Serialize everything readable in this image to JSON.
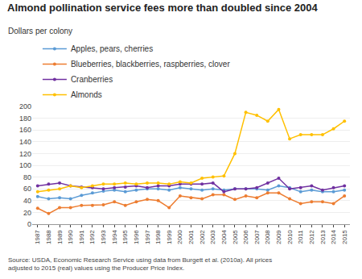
{
  "chart_data": {
    "type": "line",
    "title": "Almond pollination service fees more than doubled since 2004",
    "ylabel": "Dollars per colony",
    "annotations": [
      "Source: USDA, Economic Research Service using data from Burgett et al. (2010a). All prices\nadjusted to 2015 (real) values using the Producer Price Index."
    ],
    "x": [
      1987,
      1988,
      1989,
      1990,
      1991,
      1992,
      1993,
      1994,
      1995,
      1996,
      1997,
      1998,
      1999,
      2000,
      2001,
      2002,
      2003,
      2004,
      2005,
      2006,
      2007,
      2008,
      2009,
      2010,
      2011,
      2012,
      2013,
      2014,
      2015
    ],
    "series": [
      {
        "name": "Apples, pears, cherries",
        "color": "#5b9bd5",
        "marker": "circle",
        "values": [
          47,
          43,
          45,
          43,
          49,
          53,
          56,
          58,
          55,
          58,
          60,
          60,
          58,
          62,
          60,
          58,
          60,
          58,
          60,
          60,
          60,
          58,
          65,
          62,
          55,
          58,
          55,
          55,
          58
        ]
      },
      {
        "name": "Blueberries, blackberries, raspberries, clover",
        "color": "#ed7d31",
        "marker": "circle",
        "values": [
          27,
          18,
          28,
          28,
          32,
          32,
          33,
          38,
          32,
          38,
          42,
          40,
          28,
          48,
          45,
          43,
          50,
          50,
          42,
          48,
          45,
          53,
          53,
          43,
          35,
          38,
          38,
          35,
          48
        ]
      },
      {
        "name": "Cranberries",
        "color": "#7030a0",
        "marker": "circle",
        "values": [
          65,
          68,
          70,
          65,
          63,
          62,
          60,
          62,
          63,
          65,
          62,
          65,
          65,
          68,
          68,
          68,
          70,
          55,
          60,
          60,
          62,
          70,
          78,
          60,
          62,
          65,
          58,
          62,
          65
        ]
      },
      {
        "name": "Almonds",
        "color": "#ffc000",
        "marker": "circle",
        "values": [
          55,
          58,
          60,
          65,
          62,
          65,
          68,
          68,
          70,
          68,
          70,
          70,
          68,
          72,
          70,
          78,
          80,
          82,
          120,
          190,
          185,
          175,
          195,
          145,
          152,
          152,
          152,
          162,
          175
        ]
      }
    ],
    "xlim": [
      1986.5,
      2015.5
    ],
    "xticks": [
      1987,
      1988,
      1989,
      1990,
      1991,
      1992,
      1993,
      1994,
      1995,
      1996,
      1997,
      1998,
      1999,
      2000,
      2001,
      2002,
      2003,
      2004,
      2005,
      2006,
      2007,
      2008,
      2009,
      2010,
      2011,
      2012,
      2013,
      2014,
      2015
    ],
    "ylim": [
      0,
      200
    ],
    "yticks": [
      0,
      20,
      40,
      60,
      80,
      100,
      120,
      140,
      160,
      180,
      200
    ],
    "grid": "y",
    "legend": "top"
  }
}
